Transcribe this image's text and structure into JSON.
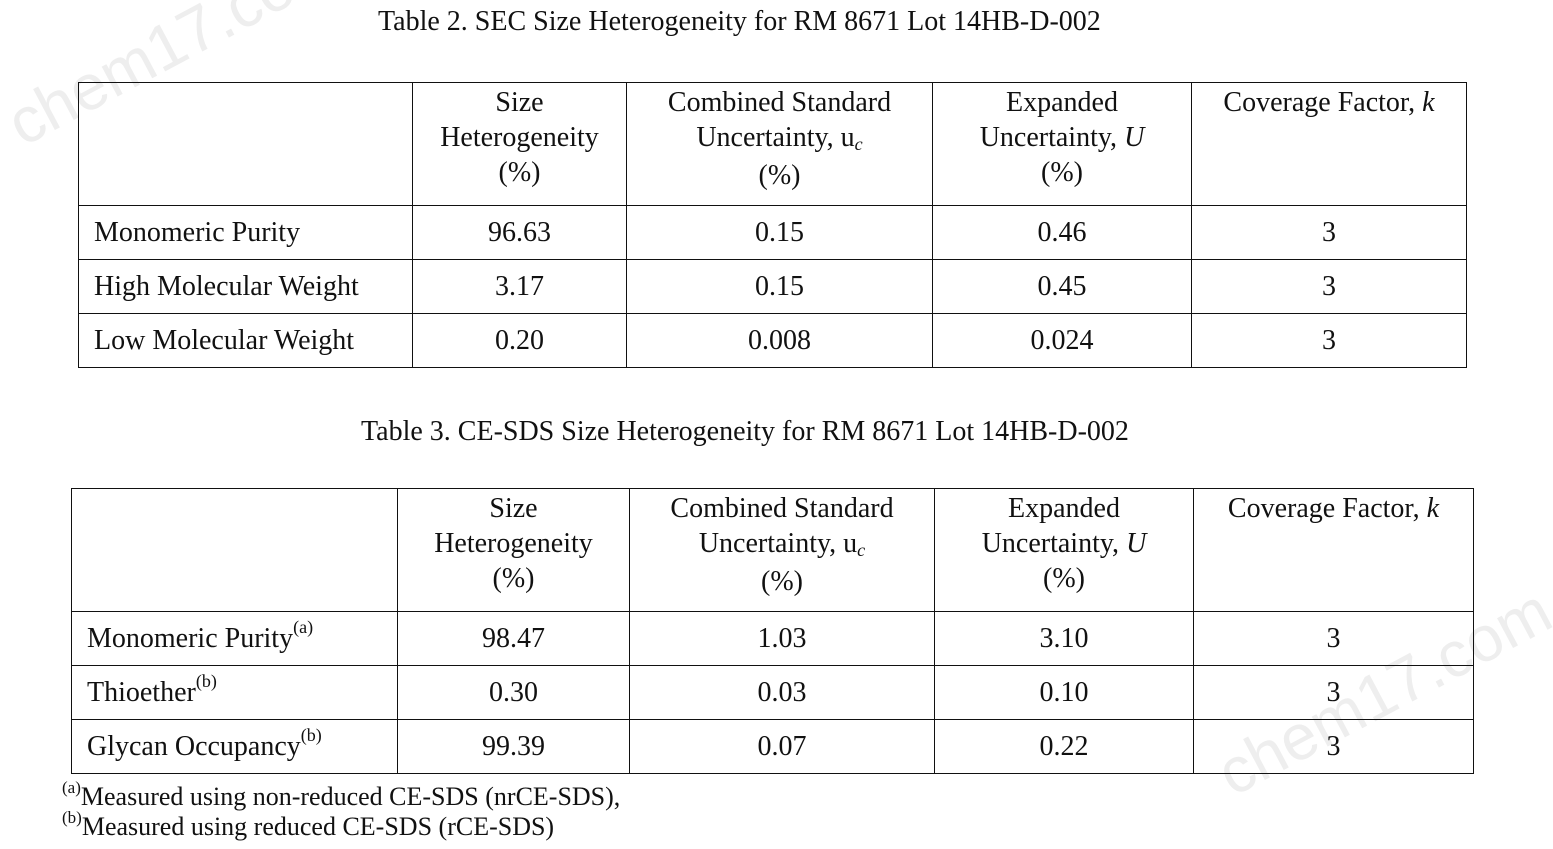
{
  "watermark": "chem17.com",
  "table2": {
    "caption": "Table 2.  SEC Size Heterogeneity for RM 8671 Lot 14HB-D-002",
    "headers": {
      "size": [
        "Size",
        "Heterogeneity",
        "(%)"
      ],
      "combined": [
        "Combined Standard",
        "Uncertainty, u",
        "c",
        "(%)"
      ],
      "expanded": [
        "Expanded",
        "Uncertainty, ",
        "U",
        "(%)"
      ],
      "coverage": [
        "Coverage Factor, ",
        "k"
      ]
    },
    "rows": [
      {
        "label": "Monomeric Purity",
        "sup": "",
        "size": "96.63",
        "combined": "0.15",
        "expanded": "0.46",
        "k": "3"
      },
      {
        "label": "High Molecular Weight",
        "sup": "",
        "size": "3.17",
        "combined": "0.15",
        "expanded": "0.45",
        "k": "3"
      },
      {
        "label": "Low Molecular Weight",
        "sup": "",
        "size": "0.20",
        "combined": "0.008",
        "expanded": "0.024",
        "k": "3"
      }
    ]
  },
  "table3": {
    "caption": "Table 3.  CE-SDS Size Heterogeneity for RM 8671 Lot 14HB-D-002",
    "headers": {
      "size": [
        "Size",
        "Heterogeneity",
        "(%)"
      ],
      "combined": [
        "Combined Standard",
        "Uncertainty, u",
        "c",
        "(%)"
      ],
      "expanded": [
        "Expanded",
        "Uncertainty, ",
        "U",
        "(%)"
      ],
      "coverage": [
        "Coverage Factor, ",
        "k"
      ]
    },
    "rows": [
      {
        "label": "Monomeric Purity",
        "sup": "(a)",
        "size": "98.47",
        "combined": "1.03",
        "expanded": "3.10",
        "k": "3"
      },
      {
        "label": "Thioether",
        "sup": "(b)",
        "size": "0.30",
        "combined": "0.03",
        "expanded": "0.10",
        "k": "3"
      },
      {
        "label": "Glycan Occupancy",
        "sup": "(b)",
        "size": "99.39",
        "combined": "0.07",
        "expanded": "0.22",
        "k": "3"
      }
    ]
  },
  "footnotes": [
    {
      "mark": "(a)",
      "text": "Measured using non-reduced CE-SDS (nrCE-SDS),"
    },
    {
      "mark": "(b)",
      "text": "Measured using reduced CE-SDS (rCE-SDS)"
    }
  ]
}
